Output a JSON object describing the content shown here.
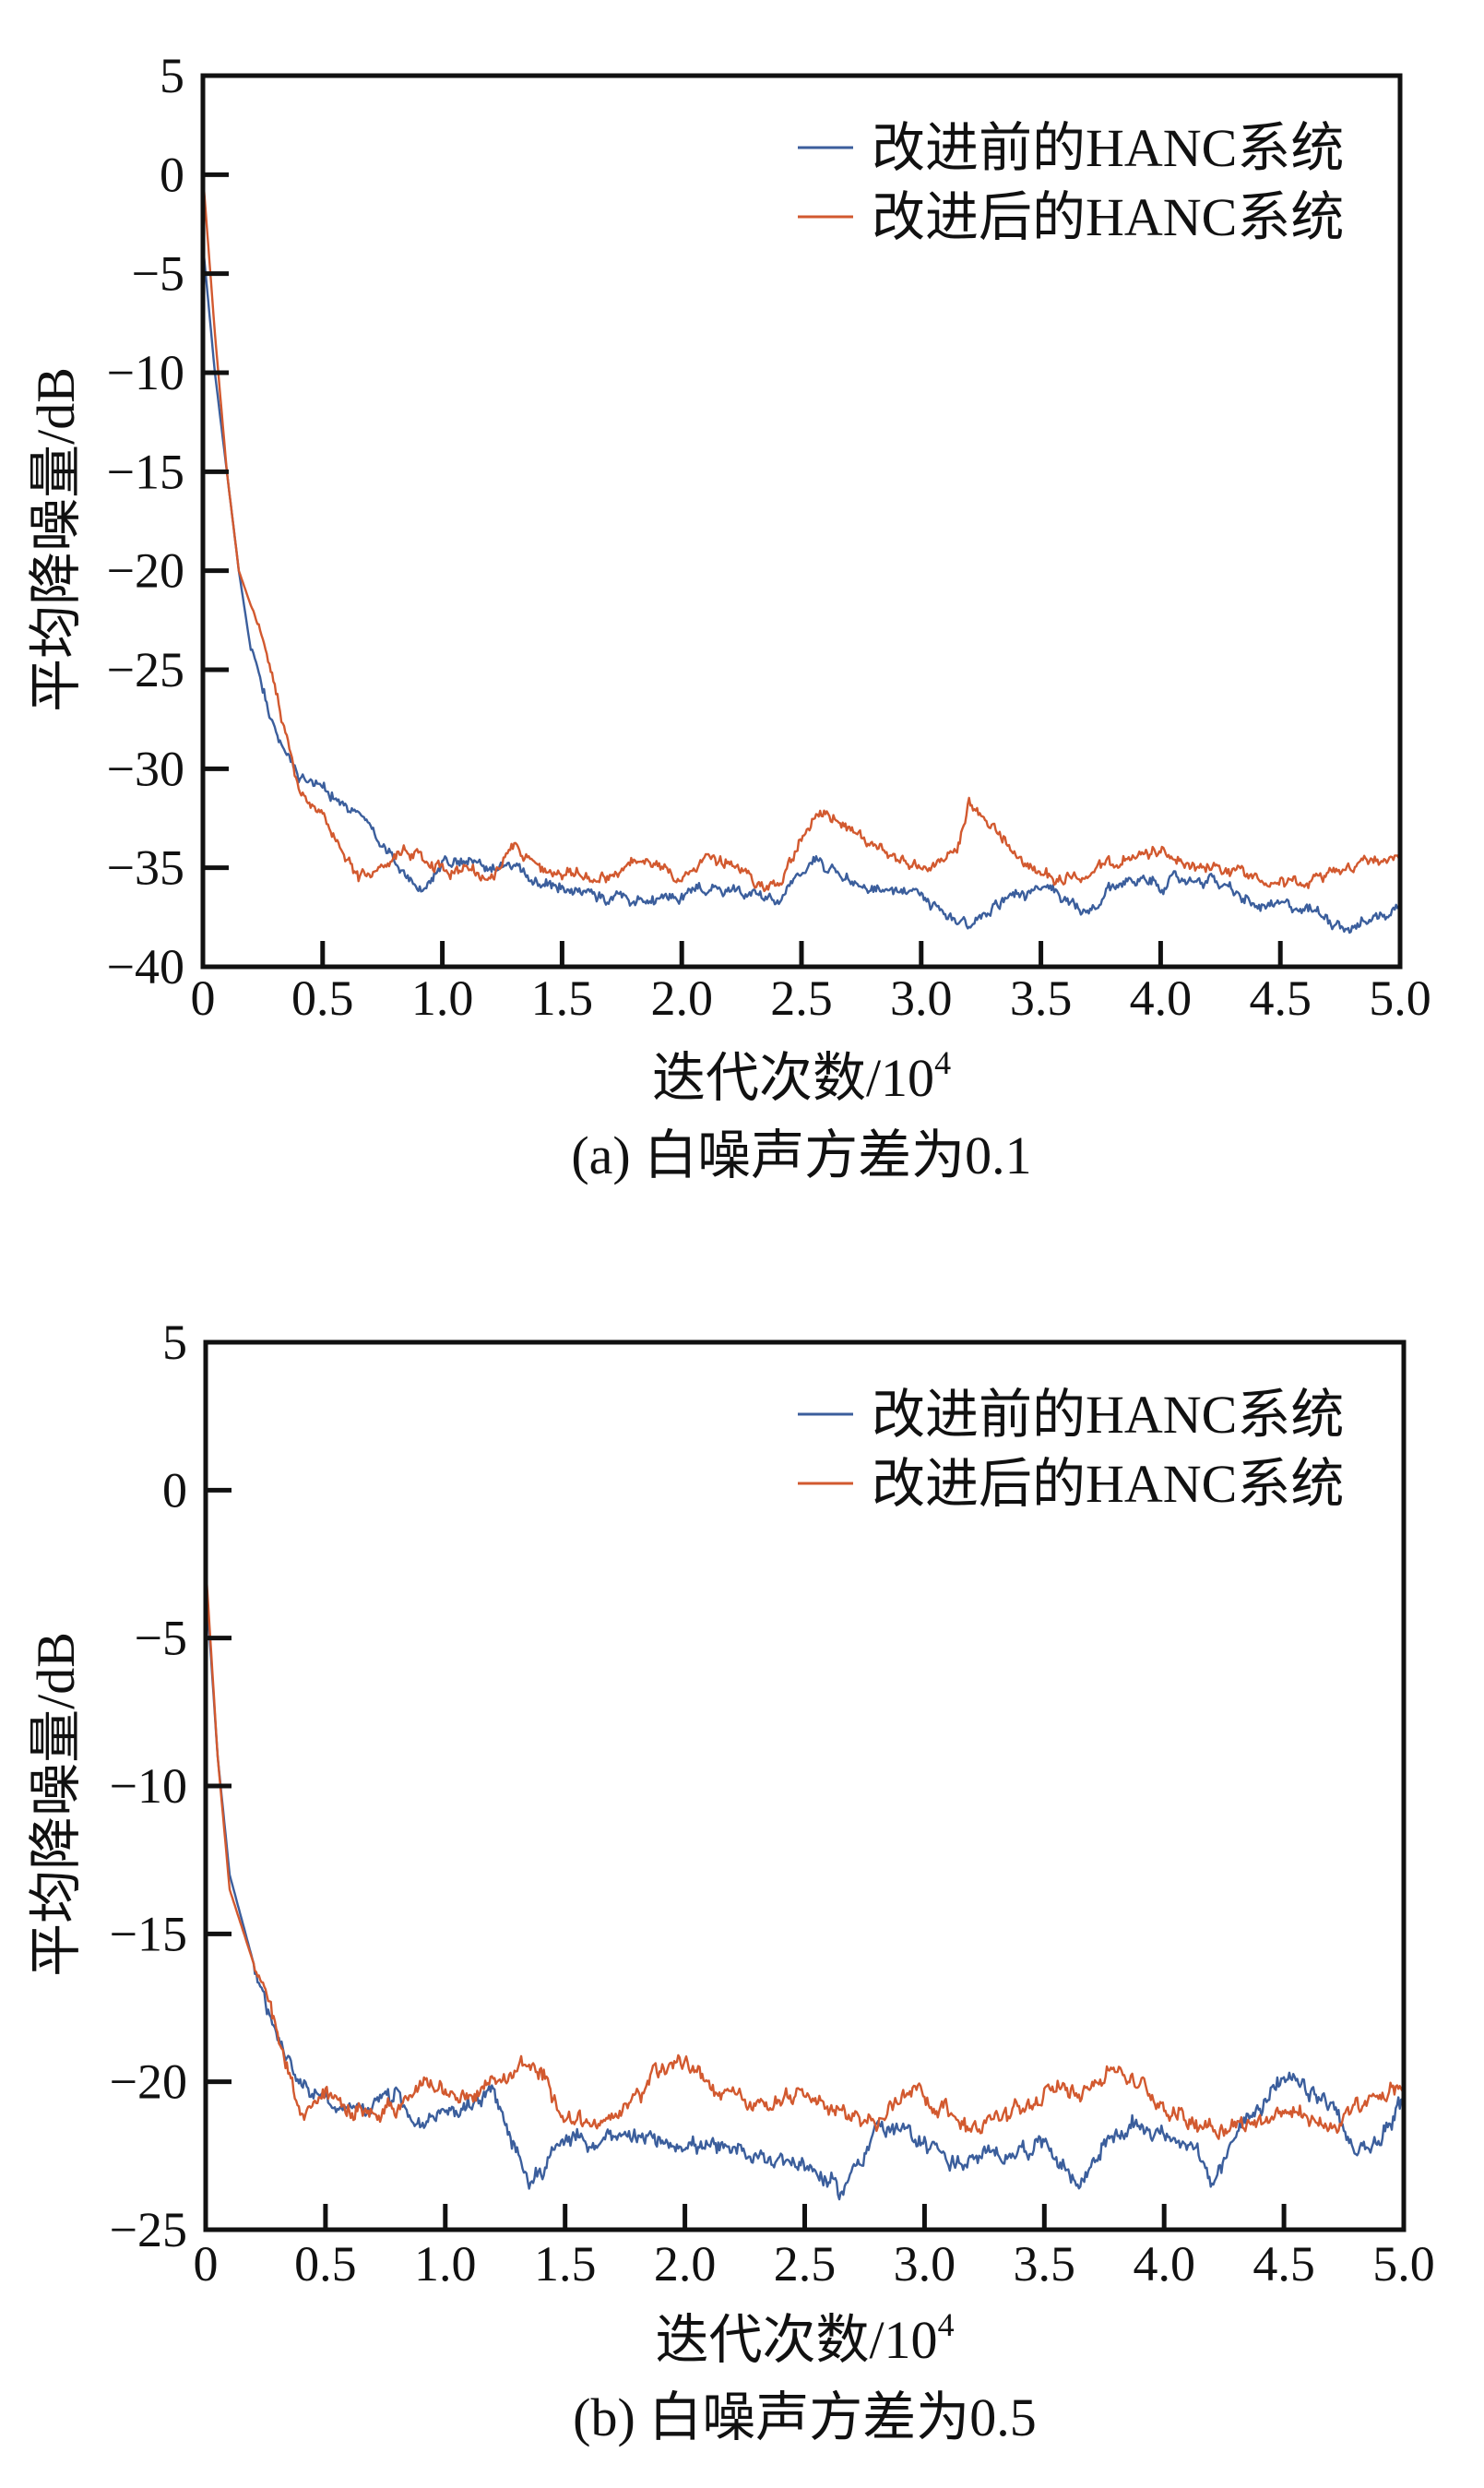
{
  "colors": {
    "before": "#3b5e9c",
    "after": "#d2592f",
    "axis": "#111111"
  },
  "chart_data": [
    {
      "type": "line",
      "title": "(a) 白噪声方差为0.1",
      "xlabel": "迭代次数/10",
      "xlabel_sup": "4",
      "ylabel": "平均降噪量/dB",
      "xlim": [
        0,
        5
      ],
      "ylim": [
        -40,
        5
      ],
      "xticks": [
        "0",
        "0.5",
        "1.0",
        "1.5",
        "2.0",
        "2.5",
        "3.0",
        "3.5",
        "4.0",
        "4.5",
        "5.0"
      ],
      "yticks": [
        "5",
        "0",
        "−5",
        "−10",
        "−15",
        "−20",
        "−25",
        "−30",
        "−35",
        "−40"
      ],
      "ytick_values": [
        5,
        0,
        -5,
        -10,
        -15,
        -20,
        -25,
        -30,
        -35,
        -40
      ],
      "legend_position": "top-right",
      "grid": false,
      "series": [
        {
          "name": "改进前的HANC系统",
          "color_key": "before",
          "x": [
            0,
            0.05,
            0.1,
            0.15,
            0.2,
            0.3,
            0.4,
            0.5,
            0.6,
            0.7,
            0.8,
            0.9,
            1.0,
            1.2,
            1.3,
            1.5,
            1.8,
            2.0,
            2.2,
            2.4,
            2.55,
            2.7,
            3.0,
            3.1,
            3.2,
            3.35,
            3.5,
            3.7,
            3.8,
            3.9,
            4.0,
            4.2,
            4.4,
            4.6,
            4.8,
            4.9,
            5.0
          ],
          "y": [
            -3.5,
            -10,
            -15,
            -20,
            -24,
            -28,
            -30.5,
            -30.8,
            -32,
            -33,
            -34.5,
            -36.3,
            -34.5,
            -35,
            -35,
            -36,
            -36.8,
            -36.5,
            -36,
            -36.5,
            -34.5,
            -35.5,
            -36.5,
            -37.5,
            -37.8,
            -36.5,
            -36,
            -37.5,
            -36,
            -35.5,
            -35.8,
            -35.5,
            -37,
            -37,
            -38,
            -37.5,
            -37
          ]
        },
        {
          "name": "改进后的HANC系统",
          "color_key": "after",
          "x": [
            0,
            0.05,
            0.1,
            0.15,
            0.25,
            0.3,
            0.4,
            0.5,
            0.6,
            0.65,
            0.75,
            0.85,
            1.0,
            1.2,
            1.3,
            1.5,
            1.7,
            1.85,
            2.0,
            2.1,
            2.3,
            2.4,
            2.55,
            2.65,
            2.8,
            3.0,
            3.15,
            3.2,
            3.3,
            3.45,
            3.55,
            3.7,
            3.8,
            4.0,
            4.2,
            4.5,
            4.6,
            4.75,
            4.9,
            5.0
          ],
          "y": [
            0,
            -8,
            -15,
            -20,
            -23.5,
            -26,
            -31,
            -32.5,
            -34.5,
            -35.5,
            -35,
            -34,
            -35,
            -35.5,
            -34,
            -35.5,
            -35.5,
            -34.5,
            -35.5,
            -34.5,
            -35.5,
            -36,
            -32.5,
            -32.5,
            -34,
            -35,
            -34.5,
            -32,
            -33,
            -35,
            -35.5,
            -35.5,
            -34.8,
            -34.2,
            -35,
            -35.5,
            -36,
            -35,
            -34.5,
            -34.5
          ]
        }
      ]
    },
    {
      "type": "line",
      "title": "(b) 白噪声方差为0.5",
      "xlabel": "迭代次数/10",
      "xlabel_sup": "4",
      "ylabel": "平均降噪量/dB",
      "xlim": [
        0,
        5
      ],
      "ylim": [
        -25,
        5
      ],
      "xticks": [
        "0",
        "0.5",
        "1.0",
        "1.5",
        "2.0",
        "2.5",
        "3.0",
        "3.5",
        "4.0",
        "4.5",
        "5.0"
      ],
      "yticks": [
        "5",
        "0",
        "−5",
        "−10",
        "−15",
        "−20",
        "−25"
      ],
      "ytick_values": [
        5,
        0,
        -5,
        -10,
        -15,
        -20,
        -25
      ],
      "legend_position": "top-right",
      "grid": false,
      "series": [
        {
          "name": "改进前的HANC系统",
          "color_key": "before",
          "x": [
            0,
            0.05,
            0.1,
            0.2,
            0.3,
            0.4,
            0.5,
            0.6,
            0.8,
            0.9,
            1.0,
            1.2,
            1.3,
            1.35,
            1.5,
            1.7,
            2.0,
            2.2,
            2.4,
            2.55,
            2.65,
            2.8,
            3.0,
            3.15,
            3.3,
            3.5,
            3.65,
            3.75,
            3.9,
            4.1,
            4.2,
            4.35,
            4.5,
            4.7,
            4.8,
            4.9,
            5.0
          ],
          "y": [
            -3,
            -9,
            -13,
            -16,
            -18.5,
            -20,
            -20.5,
            -21,
            -20.5,
            -21.5,
            -21,
            -20.5,
            -22.5,
            -23.3,
            -22,
            -22,
            -22,
            -22.5,
            -22.5,
            -23,
            -23.8,
            -21.5,
            -22,
            -22.8,
            -22.5,
            -22,
            -23.5,
            -22,
            -21.5,
            -22,
            -23.5,
            -21,
            -20,
            -20.8,
            -22.5,
            -22,
            -20.5
          ]
        },
        {
          "name": "改进后的HANC系统",
          "color_key": "after",
          "x": [
            0,
            0.05,
            0.1,
            0.2,
            0.3,
            0.4,
            0.5,
            0.6,
            0.8,
            0.9,
            1.1,
            1.2,
            1.3,
            1.4,
            1.5,
            1.7,
            1.8,
            1.95,
            2.1,
            2.3,
            2.5,
            2.7,
            2.8,
            2.95,
            3.05,
            3.2,
            3.4,
            3.5,
            3.7,
            3.8,
            3.95,
            4.1,
            4.3,
            4.5,
            4.7,
            4.9,
            5.0
          ],
          "y": [
            -2.5,
            -9,
            -13.5,
            -16,
            -18.5,
            -21.3,
            -20.2,
            -21,
            -21,
            -20.3,
            -20.5,
            -20.2,
            -19.5,
            -19.5,
            -21.2,
            -21.5,
            -20.5,
            -19.2,
            -20,
            -21,
            -20.5,
            -21,
            -21.5,
            -20,
            -20.8,
            -21.5,
            -21,
            -20.5,
            -20,
            -19.5,
            -20.5,
            -21.3,
            -21.5,
            -21,
            -21.5,
            -20.5,
            -20.3
          ]
        }
      ]
    }
  ]
}
